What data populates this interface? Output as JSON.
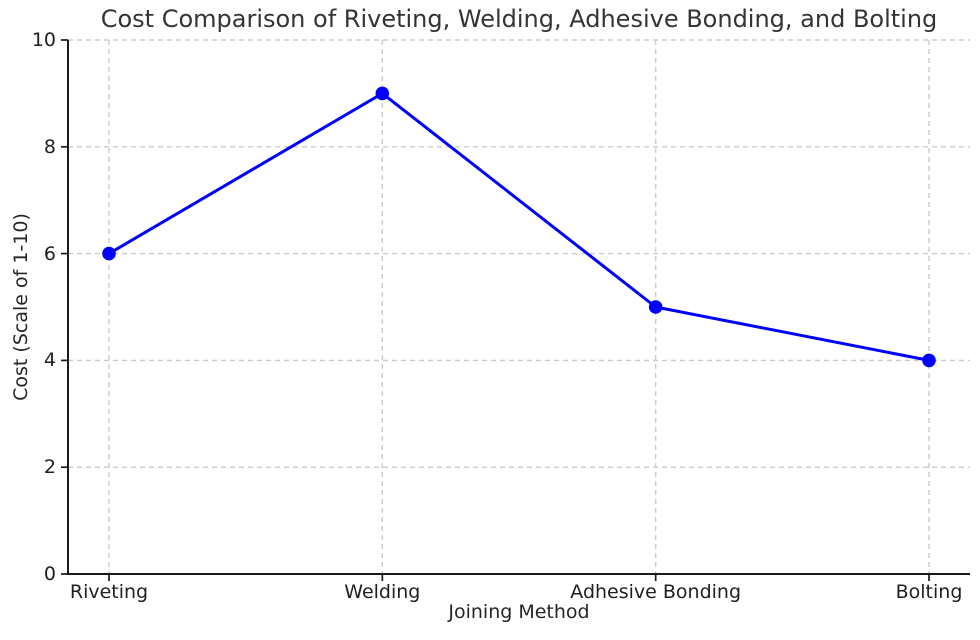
{
  "figure": {
    "background": "#ffffff"
  },
  "chart_data": {
    "type": "line",
    "title": "Cost Comparison of Riveting, Welding, Adhesive Bonding, and Bolting",
    "xlabel": "Joining Method",
    "ylabel": "Cost (Scale of 1-10)",
    "categories": [
      "Riveting",
      "Welding",
      "Adhesive Bonding",
      "Bolting"
    ],
    "values": [
      6,
      9,
      5,
      4
    ],
    "ylim": [
      0,
      10
    ],
    "yticks": [
      0,
      2,
      4,
      6,
      8,
      10
    ],
    "grid": {
      "visible": true,
      "line_style": "dashed",
      "color": "#cbcbcb"
    },
    "line": {
      "color": "#0000ff",
      "width": 3,
      "marker": "circle",
      "marker_radius": 6.8
    },
    "axis": {
      "spine_color": "#1a1a1a",
      "tick_color": "#1a1a1a",
      "text_color": "#1f1f1f"
    },
    "legend": null
  }
}
